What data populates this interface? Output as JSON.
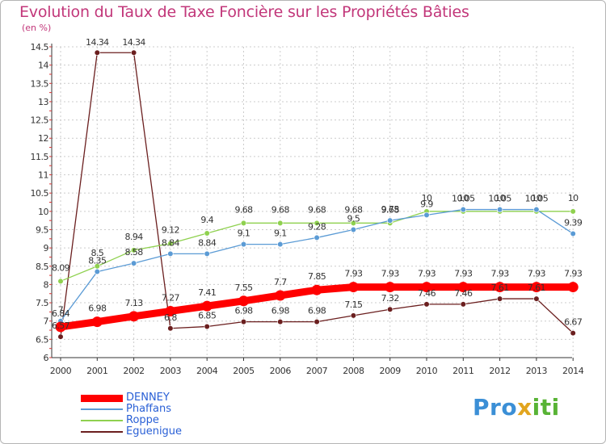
{
  "title": "Evolution du Taux de Taxe Foncière sur les Propriétés Bâties",
  "subtitle": "(en %)",
  "logo": {
    "text_a": "Pro",
    "text_b": "x",
    "text_c": "iti"
  },
  "colors": {
    "title": "#c2377a",
    "axis": "#333333",
    "grid": "#cccccc",
    "legend_text": "#2a60d6"
  },
  "chart_data": {
    "type": "line",
    "title": "Evolution du Taux de Taxe Foncière sur les Propriétés Bâties",
    "ylabel": "(en %)",
    "xlabel": "",
    "x": [
      "2000",
      "2001",
      "2002",
      "2003",
      "2004",
      "2005",
      "2006",
      "2007",
      "2008",
      "2009",
      "2010",
      "2011",
      "2012",
      "2013",
      "2014"
    ],
    "yticks": [
      "6",
      "6.5",
      "7",
      "7.5",
      "8",
      "8.5",
      "9",
      "9.5",
      "10",
      "10.5",
      "11",
      "11.5",
      "12",
      "12.5",
      "13",
      "13.5",
      "14",
      "14.5"
    ],
    "ylim": [
      6,
      14.5
    ],
    "grid": true,
    "legend_position": "bottom-left",
    "series": [
      {
        "name": "DENNEY",
        "color": "#ff0000",
        "style": "thick",
        "values": [
          6.84,
          6.98,
          7.13,
          7.27,
          7.41,
          7.55,
          7.7,
          7.85,
          7.93,
          7.93,
          7.93,
          7.93,
          7.93,
          7.93,
          7.93
        ],
        "labels": [
          "6.84",
          "6.98",
          "7.13",
          "7.27",
          "7.41",
          "7.55",
          "7.7",
          "7.85",
          "7.93",
          "7.93",
          "7.93",
          "7.93",
          "7.93",
          "7.93",
          "7.93"
        ]
      },
      {
        "name": "Phaffans",
        "color": "#5b9bd5",
        "style": "thin",
        "values": [
          7,
          8.35,
          8.58,
          8.84,
          8.84,
          9.1,
          9.1,
          9.28,
          9.5,
          9.75,
          9.9,
          10.05,
          10.05,
          10.05,
          9.39
        ],
        "labels": [
          "7",
          "8.35",
          "8.58",
          "8.84",
          "8.84",
          "9.1",
          "9.1",
          "9.28",
          "9.5",
          "9.75",
          "9.9",
          "10.05",
          "10.05",
          "10.05",
          "9.39"
        ]
      },
      {
        "name": "Roppe",
        "color": "#8fd14f",
        "style": "thin",
        "values": [
          8.09,
          8.5,
          8.94,
          9.12,
          9.4,
          9.68,
          9.68,
          9.68,
          9.68,
          9.68,
          10,
          10,
          10,
          10,
          10
        ],
        "labels": [
          "8.09",
          "8.5",
          "8.94",
          "9.12",
          "9.4",
          "9.68",
          "9.68",
          "9.68",
          "9.68",
          "9.68",
          "10",
          "10",
          "10",
          "10",
          "10"
        ]
      },
      {
        "name": "Eguenigue",
        "color": "#6b1f1f",
        "style": "thin",
        "values": [
          6.57,
          14.34,
          14.34,
          6.8,
          6.85,
          6.98,
          6.98,
          6.98,
          7.15,
          7.32,
          7.46,
          7.46,
          7.61,
          7.61,
          6.67
        ],
        "labels": [
          "6.57",
          "14.34",
          "14.34",
          "6.8",
          "6.85",
          "6.98",
          "6.98",
          "6.98",
          "7.15",
          "7.32",
          "7.46",
          "7.46",
          "7.61",
          "7.61",
          "6.67"
        ]
      }
    ]
  }
}
